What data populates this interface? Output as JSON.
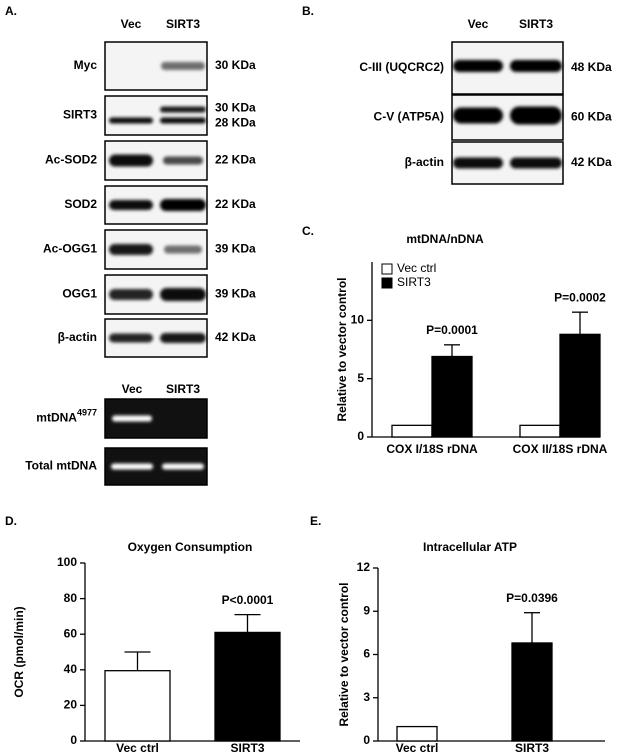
{
  "blots_a": {
    "label": "A.",
    "lanes": [
      "Vec",
      "SIRT3"
    ],
    "rows": [
      {
        "name": "Myc",
        "sizes": [
          "30 KDa"
        ]
      },
      {
        "name": "SIRT3",
        "sizes": [
          "30 KDa",
          "28 KDa"
        ]
      },
      {
        "name": "Ac-SOD2",
        "sizes": [
          "22 KDa"
        ]
      },
      {
        "name": "SOD2",
        "sizes": [
          "22 KDa"
        ]
      },
      {
        "name": "Ac-OGG1",
        "sizes": [
          "39 KDa"
        ]
      },
      {
        "name": "OGG1",
        "sizes": [
          "39 KDa"
        ]
      },
      {
        "name": "β-actin",
        "sizes": [
          "42 KDa"
        ]
      }
    ]
  },
  "gels_a": {
    "lanes": [
      "Vec",
      "SIRT3"
    ],
    "rows": [
      {
        "name": "mtDNA",
        "superscript": "4977"
      },
      {
        "name": "Total mtDNA"
      }
    ]
  },
  "blots_b": {
    "label": "B.",
    "lanes": [
      "Vec",
      "SIRT3"
    ],
    "rows": [
      {
        "name": "C-III (UQCRC2)",
        "sizes": [
          "48 KDa"
        ]
      },
      {
        "name": "C-V (ATP5A)",
        "sizes": [
          "60 KDa"
        ]
      },
      {
        "name": "β-actin",
        "sizes": [
          "42 KDa"
        ]
      }
    ]
  },
  "chart_data": [
    {
      "type": "bar",
      "label": "C.",
      "title": "mtDNA/nDNA",
      "y_label": "Relative to vector control",
      "categories": [
        "COX I/18S rDNA",
        "COX II/18S rDNA"
      ],
      "series": [
        {
          "name": "Vec ctrl",
          "color": "#ffffff",
          "values": [
            1,
            1
          ]
        },
        {
          "name": "SIRT3",
          "color": "#000000",
          "values": [
            6.9,
            8.8
          ],
          "errors": [
            1.0,
            1.9
          ]
        }
      ],
      "annotations": [
        "P=0.0001",
        "P=0.0002"
      ],
      "ylim": [
        0,
        15
      ],
      "yticks": [
        0,
        5,
        10
      ],
      "legend": "top-left"
    },
    {
      "type": "bar",
      "label": "D.",
      "title": "Oxygen Consumption",
      "y_label": "OCR (pmol/min)",
      "categories": [
        "Vec ctrl",
        "SIRT3"
      ],
      "values": [
        39.5,
        61
      ],
      "errors": [
        10.5,
        10
      ],
      "colors": [
        "#ffffff",
        "#000000"
      ],
      "annotations": [
        null,
        "P<0.0001"
      ],
      "ylim": [
        0,
        100
      ],
      "yticks": [
        0,
        20,
        40,
        60,
        80,
        100
      ]
    },
    {
      "type": "bar",
      "label": "E.",
      "title": "Intracellular ATP",
      "y_label": "Relative to vector control",
      "categories": [
        "Vec ctrl",
        "SIRT3"
      ],
      "values": [
        1,
        6.8
      ],
      "errors": [
        null,
        2.1
      ],
      "colors": [
        "#ffffff",
        "#000000"
      ],
      "annotations": [
        null,
        "P=0.0396"
      ],
      "ylim": [
        0,
        12
      ],
      "yticks": [
        0,
        3,
        6,
        9,
        12
      ]
    }
  ]
}
